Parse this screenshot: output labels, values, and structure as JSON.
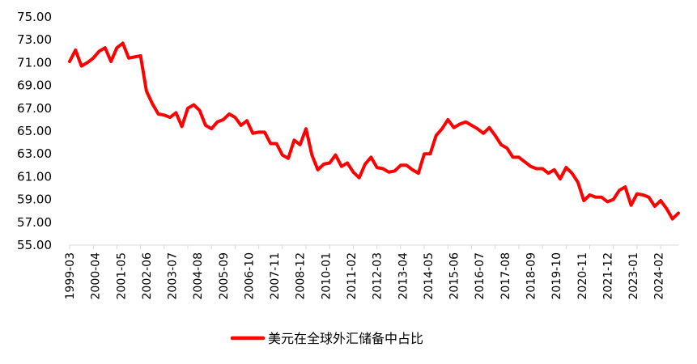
{
  "chart_data": {
    "type": "line",
    "title": "",
    "xlabel": "",
    "ylabel": "",
    "ylim": [
      55.0,
      75.0
    ],
    "y_ticks": [
      "55.00",
      "57.00",
      "59.00",
      "61.00",
      "63.00",
      "65.00",
      "67.00",
      "69.00",
      "71.00",
      "73.00",
      "75.00"
    ],
    "x_tick_labels": [
      "1999-03",
      "2000-04",
      "2001-05",
      "2002-06",
      "2003-07",
      "2004-08",
      "2005-09",
      "2006-10",
      "2007-11",
      "2008-12",
      "2010-01",
      "2011-02",
      "2012-03",
      "2013-04",
      "2014-05",
      "2015-06",
      "2016-07",
      "2017-08",
      "2018-09",
      "2019-10",
      "2020-11",
      "2021-12",
      "2023-01",
      "2024-02"
    ],
    "grid": false,
    "legend_position": "bottom",
    "series": [
      {
        "name": "美元在全球外汇储备中占比",
        "color": "#ff0000",
        "x": [
          "1999-03",
          "1999-06",
          "1999-09",
          "1999-12",
          "2000-03",
          "2000-06",
          "2000-09",
          "2000-12",
          "2001-03",
          "2001-06",
          "2001-09",
          "2001-12",
          "2002-03",
          "2002-06",
          "2002-09",
          "2002-12",
          "2003-03",
          "2003-06",
          "2003-09",
          "2003-12",
          "2004-03",
          "2004-06",
          "2004-09",
          "2004-12",
          "2005-03",
          "2005-06",
          "2005-09",
          "2005-12",
          "2006-03",
          "2006-06",
          "2006-09",
          "2006-12",
          "2007-03",
          "2007-06",
          "2007-09",
          "2007-12",
          "2008-03",
          "2008-06",
          "2008-09",
          "2008-12",
          "2009-03",
          "2009-06",
          "2009-09",
          "2009-12",
          "2010-03",
          "2010-06",
          "2010-09",
          "2010-12",
          "2011-03",
          "2011-06",
          "2011-09",
          "2011-12",
          "2012-03",
          "2012-06",
          "2012-09",
          "2012-12",
          "2013-03",
          "2013-06",
          "2013-09",
          "2013-12",
          "2014-03",
          "2014-06",
          "2014-09",
          "2014-12",
          "2015-03",
          "2015-06",
          "2015-09",
          "2015-12",
          "2016-03",
          "2016-06",
          "2016-09",
          "2016-12",
          "2017-03",
          "2017-06",
          "2017-09",
          "2017-12",
          "2018-03",
          "2018-06",
          "2018-09",
          "2018-12",
          "2019-03",
          "2019-06",
          "2019-09",
          "2019-12",
          "2020-03",
          "2020-06",
          "2020-09",
          "2020-12",
          "2021-03",
          "2021-06",
          "2021-09",
          "2021-12",
          "2022-03",
          "2022-06",
          "2022-09",
          "2022-12",
          "2023-03",
          "2023-06",
          "2023-09",
          "2023-12",
          "2024-03",
          "2024-06",
          "2024-09",
          "2024-12"
        ],
        "values": [
          71.1,
          72.1,
          70.7,
          71.0,
          71.4,
          72.0,
          72.3,
          71.1,
          72.3,
          72.7,
          71.4,
          71.5,
          71.6,
          68.5,
          67.4,
          66.5,
          66.4,
          66.2,
          66.6,
          65.4,
          67.0,
          67.3,
          66.8,
          65.5,
          65.2,
          65.8,
          66.0,
          66.5,
          66.2,
          65.5,
          65.9,
          64.8,
          64.9,
          64.9,
          63.9,
          63.9,
          62.9,
          62.6,
          64.2,
          63.8,
          65.2,
          62.9,
          61.6,
          62.1,
          62.2,
          62.9,
          61.9,
          62.2,
          61.4,
          60.9,
          62.1,
          62.7,
          61.8,
          61.7,
          61.4,
          61.5,
          62.0,
          62.0,
          61.6,
          61.3,
          63.0,
          63.0,
          64.6,
          65.2,
          66.0,
          65.3,
          65.6,
          65.8,
          65.5,
          65.2,
          64.8,
          65.3,
          64.6,
          63.8,
          63.5,
          62.7,
          62.7,
          62.3,
          61.9,
          61.7,
          61.7,
          61.3,
          61.6,
          60.8,
          61.8,
          61.3,
          60.5,
          58.9,
          59.4,
          59.2,
          59.2,
          58.8,
          59.0,
          59.8,
          60.1,
          58.5,
          59.5,
          59.4,
          59.2,
          58.4,
          58.9,
          58.2,
          57.3,
          57.8
        ]
      }
    ]
  }
}
